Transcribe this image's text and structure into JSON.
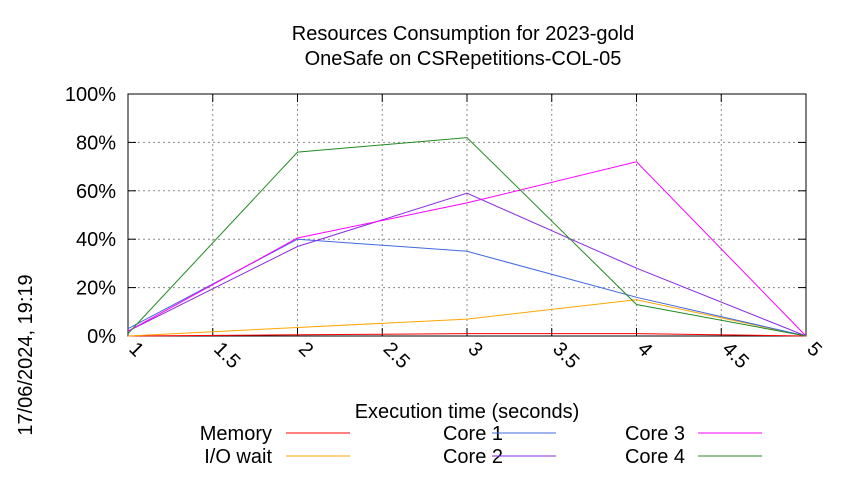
{
  "chart_data": {
    "type": "line",
    "title_lines": [
      "Resources Consumption for 2023-gold",
      "OneSafe on CSRepetitions-COL-05"
    ],
    "xlabel": "Execution time (seconds)",
    "ylabel": "",
    "side_stamp": "17/06/2024, 19:19",
    "xlim": [
      1,
      5
    ],
    "ylim": [
      0,
      100
    ],
    "x_ticks": [
      1,
      1.5,
      2,
      2.5,
      3,
      3.5,
      4,
      4.5,
      5
    ],
    "x_tick_labels": [
      "1",
      "1.5",
      "2",
      "2.5",
      "3",
      "3.5",
      "4",
      "4.5",
      "5"
    ],
    "y_ticks": [
      0,
      20,
      40,
      60,
      80,
      100
    ],
    "y_tick_labels": [
      "0%",
      "20%",
      "40%",
      "60%",
      "80%",
      "100%"
    ],
    "grid": true,
    "legend_position": "bottom",
    "x": [
      1,
      2,
      3,
      4,
      5
    ],
    "series": [
      {
        "name": "Memory",
        "color": "#ff0000",
        "values": [
          0,
          0.5,
          1,
          1,
          0
        ]
      },
      {
        "name": "I/O wait",
        "color": "#ffa500",
        "values": [
          0,
          3.5,
          7,
          15,
          0
        ]
      },
      {
        "name": "Core 1",
        "color": "#4169e1",
        "values": [
          3,
          40,
          35,
          16,
          0
        ]
      },
      {
        "name": "Core 2",
        "color": "#8a2be2",
        "values": [
          2,
          37,
          59,
          28,
          0
        ]
      },
      {
        "name": "Core 3",
        "color": "#ff00ff",
        "values": [
          2,
          40.5,
          55,
          72,
          0
        ]
      },
      {
        "name": "Core 4",
        "color": "#228b22",
        "values": [
          1,
          76,
          82,
          13,
          0
        ]
      }
    ]
  }
}
